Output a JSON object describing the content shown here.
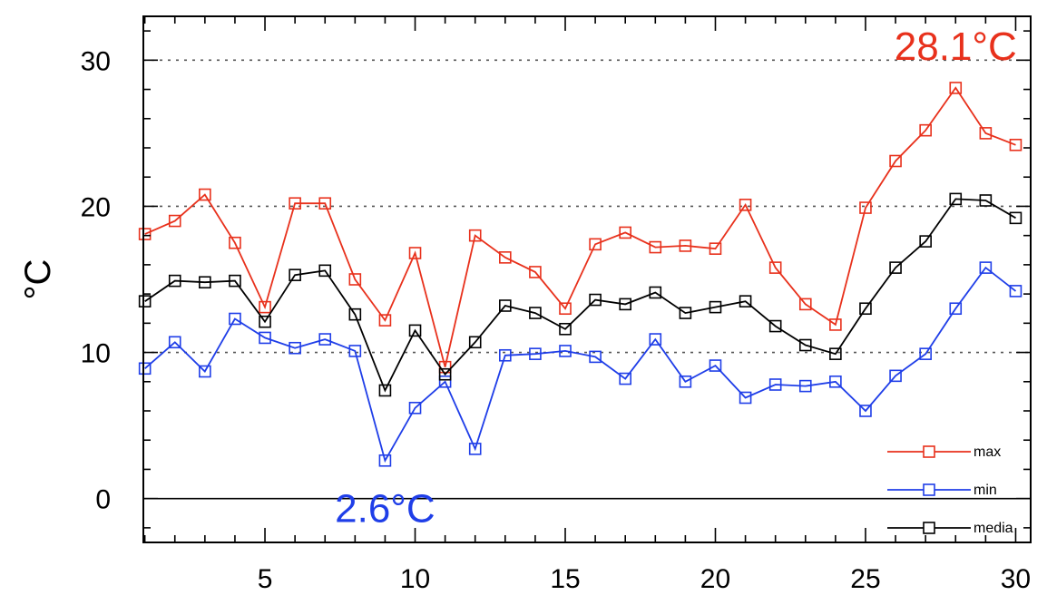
{
  "chart_data": {
    "type": "line",
    "title": "",
    "xlabel": "",
    "ylabel": "°C",
    "xlim": [
      0.95,
      30.5
    ],
    "ylim": [
      -3,
      33
    ],
    "x_ticks": [
      5,
      10,
      15,
      20,
      25,
      30
    ],
    "y_ticks": [
      0,
      10,
      20,
      30
    ],
    "dashed_grid_y": [
      10,
      20,
      30
    ],
    "zero_line": true,
    "legend_position": "bottom-right",
    "x": [
      1,
      2,
      3,
      4,
      5,
      6,
      7,
      8,
      9,
      10,
      11,
      12,
      13,
      14,
      15,
      16,
      17,
      18,
      19,
      20,
      21,
      22,
      23,
      24,
      25,
      26,
      27,
      28,
      29,
      30
    ],
    "series": [
      {
        "name": "max",
        "color": "#e8311c",
        "marker": "square",
        "values": [
          18.1,
          19.0,
          20.8,
          17.5,
          13.1,
          20.2,
          20.2,
          15.0,
          12.2,
          16.8,
          9.0,
          18.0,
          16.5,
          15.5,
          13.0,
          17.4,
          18.2,
          17.2,
          17.3,
          17.1,
          20.1,
          15.8,
          13.3,
          11.9,
          19.9,
          23.1,
          25.2,
          28.1,
          25.0,
          24.2
        ]
      },
      {
        "name": "min",
        "color": "#1f3ee8",
        "marker": "square",
        "values": [
          8.9,
          10.7,
          8.7,
          12.3,
          11.0,
          10.3,
          10.9,
          10.1,
          2.6,
          6.2,
          8.0,
          3.4,
          9.8,
          9.9,
          10.1,
          9.7,
          8.2,
          10.9,
          8.0,
          9.1,
          6.9,
          7.8,
          7.7,
          8.0,
          6.0,
          8.4,
          9.9,
          13.0,
          15.8,
          14.2
        ]
      },
      {
        "name": "media",
        "color": "#000000",
        "marker": "square",
        "values": [
          13.5,
          14.9,
          14.8,
          14.9,
          12.1,
          15.3,
          15.6,
          12.6,
          7.4,
          11.5,
          8.5,
          10.7,
          13.2,
          12.7,
          11.6,
          13.6,
          13.3,
          14.1,
          12.7,
          13.1,
          13.5,
          11.8,
          10.5,
          9.9,
          13.0,
          15.8,
          17.6,
          20.5,
          20.4,
          19.2
        ]
      }
    ],
    "annotations": [
      {
        "text": "28.1°C",
        "color": "#e8311c",
        "x": 28,
        "y": 31
      },
      {
        "text": "2.6°C",
        "color": "#1f3ee8",
        "x": 9,
        "y": -0.6
      }
    ]
  }
}
